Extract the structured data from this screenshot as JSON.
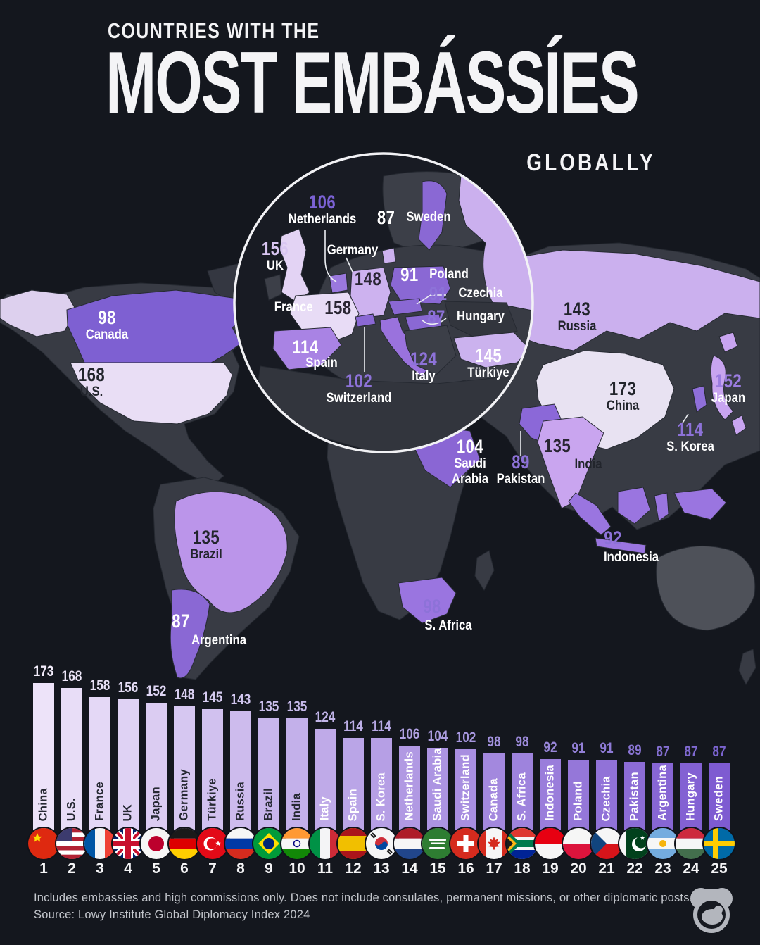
{
  "header": {
    "kicker": "COUNTRIES WITH THE",
    "title": "MOST EMBÁSSÍES",
    "subtitle": "GLOBALLY"
  },
  "palette": {
    "background": "#14171e",
    "land": "#383b44",
    "accent_lightest": "#e9def5",
    "accent_light": "#cbb0ee",
    "accent_mid": "#bb95ea",
    "accent_deep": "#7e5bd1",
    "label_purple": "#8d72d8",
    "text_light": "#ffffff",
    "text_dark": "#22252c",
    "footer_text": "#c3c6cc"
  },
  "map": {
    "countries": [
      {
        "name": "Canada",
        "value": 98
      },
      {
        "name": "U.S.",
        "value": 168
      },
      {
        "name": "Russia",
        "value": 143
      },
      {
        "name": "China",
        "value": 173
      },
      {
        "name": "Japan",
        "value": 152
      },
      {
        "name": "S. Korea",
        "value": 114
      },
      {
        "name": "Saudi Arabia",
        "value": 104
      },
      {
        "name": "Pakistan",
        "value": 89
      },
      {
        "name": "India",
        "value": 135
      },
      {
        "name": "Indonesia",
        "value": 92
      },
      {
        "name": "Brazil",
        "value": 135
      },
      {
        "name": "Argentina",
        "value": 87
      },
      {
        "name": "S. Africa",
        "value": 98
      }
    ]
  },
  "europe_inset": {
    "countries": [
      {
        "name": "Netherlands",
        "value": 106
      },
      {
        "name": "Sweden",
        "value": 87
      },
      {
        "name": "UK",
        "value": 156
      },
      {
        "name": "Germany",
        "value": 148
      },
      {
        "name": "Poland",
        "value": 91
      },
      {
        "name": "Czechia",
        "value": 91
      },
      {
        "name": "Hungary",
        "value": 87
      },
      {
        "name": "France",
        "value": 158
      },
      {
        "name": "Spain",
        "value": 114
      },
      {
        "name": "Switzerland",
        "value": 102
      },
      {
        "name": "Italy",
        "value": 124
      },
      {
        "name": "Türkiye",
        "value": 145
      }
    ]
  },
  "chart_data": {
    "type": "bar",
    "title": "Countries with the most embassies globally",
    "categories": [
      "China",
      "U.S.",
      "France",
      "UK",
      "Japan",
      "Germany",
      "Türkiye",
      "Russia",
      "Brazil",
      "India",
      "Italy",
      "Spain",
      "S. Korea",
      "Netherlands",
      "Saudi Arabia",
      "Switzerland",
      "Canada",
      "S. Africa",
      "Indonesia",
      "Poland",
      "Czechia",
      "Pakistan",
      "Argentina",
      "Hungary",
      "Sweden"
    ],
    "values": [
      173,
      168,
      158,
      156,
      152,
      148,
      145,
      143,
      135,
      135,
      124,
      114,
      114,
      106,
      104,
      102,
      98,
      98,
      92,
      91,
      91,
      89,
      87,
      87,
      87
    ],
    "ranks": [
      1,
      2,
      3,
      4,
      5,
      6,
      7,
      8,
      9,
      10,
      11,
      12,
      13,
      14,
      15,
      16,
      17,
      18,
      19,
      20,
      21,
      22,
      23,
      24,
      25
    ],
    "flags": [
      "china",
      "us",
      "france",
      "uk",
      "japan",
      "germany",
      "turkiye",
      "russia",
      "brazil",
      "india",
      "italy",
      "spain",
      "s_korea",
      "netherlands",
      "saudi_arabia",
      "switzerland",
      "canada",
      "s_africa",
      "indonesia",
      "poland",
      "czechia",
      "pakistan",
      "argentina",
      "hungary",
      "sweden"
    ],
    "ylim": [
      0,
      180
    ],
    "grid": false,
    "legend": "none",
    "bar_color_start": "#ede3f9",
    "bar_color_end": "#7e5bd1"
  },
  "footer": {
    "note": "Includes embassies and high commissions only. Does not include consulates, permanent missions, or other diplomatic posts.",
    "source": "Source: Lowy Institute Global Diplomacy Index 2024"
  }
}
